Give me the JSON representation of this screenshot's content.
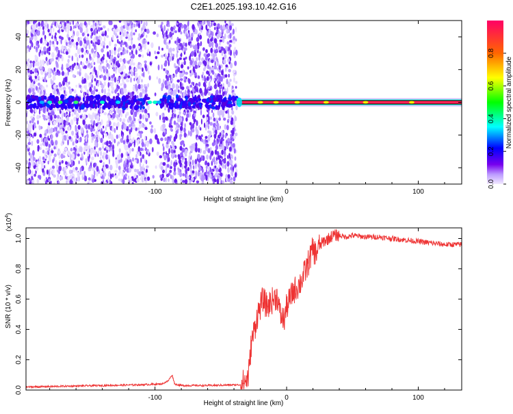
{
  "title": "C2E1.2025.193.10.42.G16",
  "chart_data": [
    {
      "type": "heatmap",
      "xlabel": "Height of straight line (km)",
      "ylabel": "Frequency (Hz)",
      "xlim": [
        -198,
        133
      ],
      "ylim": [
        -50,
        50
      ],
      "x_ticks": [
        -100,
        0,
        100
      ],
      "y_ticks": [
        -40,
        -20,
        0,
        20,
        40
      ],
      "colorbar": {
        "label": "Normalized spectral amplitude",
        "range": [
          0,
          1
        ],
        "ticks": [
          0.0,
          0.2,
          0.4,
          0.6,
          0.8
        ]
      },
      "features": {
        "noise_region_km": [
          -198,
          -38
        ],
        "gap_region_km": [
          -107,
          -93
        ],
        "carrier_start_km": -38,
        "carrier_frequency_hz": 0
      }
    },
    {
      "type": "line",
      "xlabel": "Height of straight line (km)",
      "ylabel": "SNR (10 * v/v)",
      "scale_label": "(x10",
      "scale_exponent": "4",
      "xlim": [
        -198,
        133
      ],
      "ylim": [
        0,
        1.07
      ],
      "x_ticks": [
        -100,
        0,
        100
      ],
      "y_ticks": [
        0.0,
        0.2,
        0.4,
        0.6,
        0.8,
        1.0
      ],
      "series": [
        {
          "color": "#ee3333",
          "x": [
            -198,
            -170,
            -140,
            -110,
            -95,
            -90,
            -87,
            -85,
            -80,
            -60,
            -35,
            -30,
            -29,
            -28,
            -27,
            -25,
            -22,
            -18,
            -15,
            -10,
            -7,
            -5,
            -2,
            0,
            5,
            10,
            15,
            18,
            20,
            22,
            25,
            28,
            32,
            35,
            40,
            45,
            50,
            60,
            70,
            80,
            90,
            100,
            110,
            120,
            133
          ],
          "y": [
            0.02,
            0.025,
            0.03,
            0.035,
            0.04,
            0.06,
            0.1,
            0.04,
            0.03,
            0.03,
            0.035,
            0.07,
            0.1,
            0.18,
            0.3,
            0.38,
            0.5,
            0.6,
            0.55,
            0.6,
            0.62,
            0.5,
            0.46,
            0.55,
            0.65,
            0.7,
            0.8,
            0.88,
            0.93,
            0.9,
            0.95,
            0.98,
            1.0,
            1.02,
            1.02,
            1.01,
            1.02,
            1.01,
            1.01,
            1.0,
            0.99,
            0.98,
            0.97,
            0.96,
            0.96
          ]
        }
      ]
    }
  ]
}
